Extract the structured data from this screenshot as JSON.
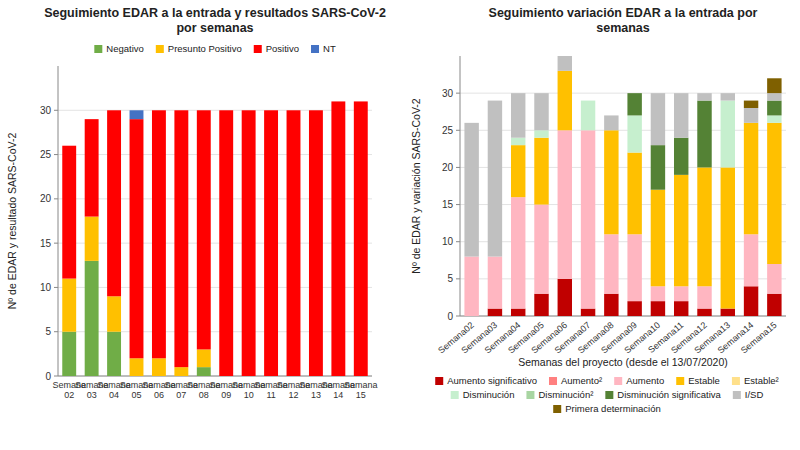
{
  "chart_data": [
    {
      "type": "bar",
      "stacked": true,
      "grid": true,
      "legend": "top",
      "title": "Seguimiento EDAR a la entrada y resultados SARS-CoV-2\npor semanas",
      "y_label": "Nº de EDAR y resultado SARS-CoV-2",
      "categories": [
        "Semana\n02",
        "Semana\n03",
        "Semana\n04",
        "Semana\n05",
        "Semana\n06",
        "Semana\n07",
        "Semana\n08",
        "Semana\n09",
        "Semana\n10",
        "Semana\n11",
        "Semana\n12",
        "Semana\n13",
        "Semana\n14",
        "Semana\n15"
      ],
      "series": [
        {
          "name": "Negativo",
          "color": "#70AD47",
          "values": [
            5,
            13,
            5,
            0,
            0,
            0,
            1,
            0,
            0,
            0,
            0,
            0,
            0,
            0
          ]
        },
        {
          "name": "Presunto Positivo",
          "color": "#FFC000",
          "values": [
            6,
            5,
            4,
            2,
            2,
            1,
            2,
            0,
            0,
            0,
            0,
            0,
            0,
            0
          ]
        },
        {
          "name": "Positivo",
          "color": "#FF0000",
          "values": [
            15,
            11,
            21,
            27,
            28,
            29,
            27,
            30,
            30,
            30,
            30,
            30,
            31,
            31
          ]
        },
        {
          "name": "NT",
          "color": "#4472C4",
          "values": [
            0,
            0,
            0,
            1,
            0,
            0,
            0,
            0,
            0,
            0,
            0,
            0,
            0,
            0
          ]
        }
      ],
      "ylim": [
        0,
        35
      ],
      "yticks": [
        0,
        5,
        10,
        15,
        20,
        25,
        30
      ]
    },
    {
      "type": "bar",
      "stacked": true,
      "grid": true,
      "legend": "bottom",
      "title": "Seguimiento variación EDAR a la entrada por\nsemanas",
      "y_label": "Nº de EDAR y variación SARS-CoV-2",
      "x_label": "Semanas del proyecto (desde el 13/07/2020)",
      "categories": [
        "Semana02",
        "Semana03",
        "Semana04",
        "Semana05",
        "Semana06",
        "Semana07",
        "Semana08",
        "Semana09",
        "Semana10",
        "Semana11",
        "Semana12",
        "Semana13",
        "Semana14",
        "Semana15"
      ],
      "series": [
        {
          "name": "Aumento significativo",
          "color": "#C00000",
          "values": [
            0,
            1,
            1,
            3,
            5,
            1,
            3,
            2,
            2,
            2,
            1,
            1,
            4,
            3
          ]
        },
        {
          "name": "Aumento²",
          "color": "#FF8080"
        },
        {
          "name": "Aumento",
          "color": "#FFB6C1",
          "values": [
            8,
            7,
            15,
            12,
            20,
            24,
            8,
            9,
            2,
            2,
            3,
            0,
            7,
            4
          ]
        },
        {
          "name": "Estable",
          "color": "#FFC000",
          "values": [
            0,
            0,
            7,
            9,
            8,
            0,
            14,
            11,
            13,
            15,
            16,
            19,
            15,
            19
          ]
        },
        {
          "name": "Estable²",
          "color": "#FFE08A"
        },
        {
          "name": "Disminución",
          "color": "#C6EFCE",
          "values": [
            0,
            0,
            1,
            1,
            0,
            4,
            0,
            5,
            0,
            0,
            0,
            9,
            0,
            1
          ]
        },
        {
          "name": "Disminución²",
          "color": "#A8D5A2"
        },
        {
          "name": "Disminución significativa",
          "color": "#548235",
          "values": [
            0,
            0,
            0,
            0,
            0,
            0,
            0,
            3,
            6,
            5,
            9,
            0,
            0,
            2
          ]
        },
        {
          "name": "I/SD",
          "color": "#C0C0C0",
          "values": [
            18,
            21,
            6,
            5,
            2,
            0,
            2,
            0,
            7,
            6,
            1,
            1,
            2,
            1
          ]
        },
        {
          "name": "Primera determinación",
          "color": "#7F6000",
          "values": [
            0,
            0,
            0,
            0,
            0,
            0,
            0,
            0,
            0,
            0,
            0,
            0,
            1,
            2
          ]
        }
      ],
      "ylim": [
        0,
        35
      ],
      "yticks": [
        0,
        5,
        10,
        15,
        20,
        25,
        30
      ]
    }
  ]
}
